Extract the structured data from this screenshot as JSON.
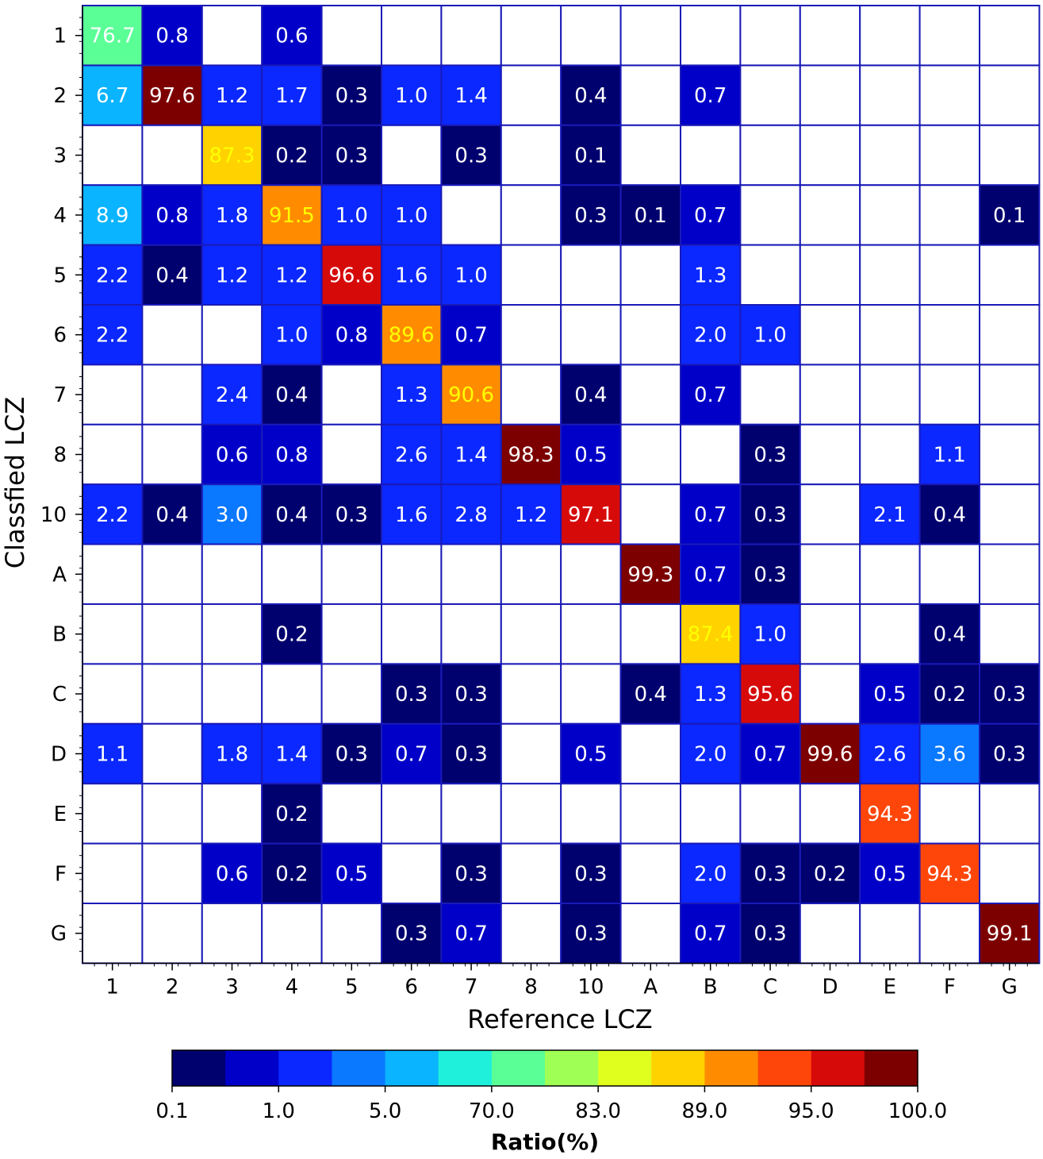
{
  "chart_data": {
    "type": "heatmap",
    "xlabel": "Reference LCZ",
    "ylabel": "Classfied LCZ",
    "x_categories": [
      "1",
      "2",
      "3",
      "4",
      "5",
      "6",
      "7",
      "8",
      "10",
      "A",
      "B",
      "C",
      "D",
      "E",
      "F",
      "G"
    ],
    "y_categories": [
      "1",
      "2",
      "3",
      "4",
      "5",
      "6",
      "7",
      "8",
      "10",
      "A",
      "B",
      "C",
      "D",
      "E",
      "F",
      "G"
    ],
    "values": [
      [
        "76.7",
        "0.8",
        "",
        "0.6",
        "",
        "",
        "",
        "",
        "",
        "",
        "",
        "",
        "",
        "",
        "",
        ""
      ],
      [
        "6.7",
        "97.6",
        "1.2",
        "1.7",
        "0.3",
        "1.0",
        "1.4",
        "",
        "0.4",
        "",
        "0.7",
        "",
        "",
        "",
        "",
        ""
      ],
      [
        "",
        "",
        "87.3",
        "0.2",
        "0.3",
        "",
        "0.3",
        "",
        "0.1",
        "",
        "",
        "",
        "",
        "",
        "",
        ""
      ],
      [
        "8.9",
        "0.8",
        "1.8",
        "91.5",
        "1.0",
        "1.0",
        "",
        "",
        "0.3",
        "0.1",
        "0.7",
        "",
        "",
        "",
        "",
        "0.1"
      ],
      [
        "2.2",
        "0.4",
        "1.2",
        "1.2",
        "96.6",
        "1.6",
        "1.0",
        "",
        "",
        "",
        "1.3",
        "",
        "",
        "",
        "",
        ""
      ],
      [
        "2.2",
        "",
        "",
        "1.0",
        "0.8",
        "89.6",
        "0.7",
        "",
        "",
        "",
        "2.0",
        "1.0",
        "",
        "",
        "",
        ""
      ],
      [
        "",
        "",
        "2.4",
        "0.4",
        "",
        "1.3",
        "90.6",
        "",
        "0.4",
        "",
        "0.7",
        "",
        "",
        "",
        "",
        ""
      ],
      [
        "",
        "",
        "0.6",
        "0.8",
        "",
        "2.6",
        "1.4",
        "98.3",
        "0.5",
        "",
        "",
        "0.3",
        "",
        "",
        "1.1",
        ""
      ],
      [
        "2.2",
        "0.4",
        "3.0",
        "0.4",
        "0.3",
        "1.6",
        "2.8",
        "1.2",
        "97.1",
        "",
        "0.7",
        "0.3",
        "",
        "2.1",
        "0.4",
        ""
      ],
      [
        "",
        "",
        "",
        "",
        "",
        "",
        "",
        "",
        "",
        "99.3",
        "0.7",
        "0.3",
        "",
        "",
        "",
        ""
      ],
      [
        "",
        "",
        "",
        "0.2",
        "",
        "",
        "",
        "",
        "",
        "",
        "87.4",
        "1.0",
        "",
        "",
        "0.4",
        ""
      ],
      [
        "",
        "",
        "",
        "",
        "",
        "0.3",
        "0.3",
        "",
        "",
        "0.4",
        "1.3",
        "95.6",
        "",
        "0.5",
        "0.2",
        "0.3"
      ],
      [
        "1.1",
        "",
        "1.8",
        "1.4",
        "0.3",
        "0.7",
        "0.3",
        "",
        "0.5",
        "",
        "2.0",
        "0.7",
        "99.6",
        "2.6",
        "3.6",
        "0.3"
      ],
      [
        "",
        "",
        "",
        "0.2",
        "",
        "",
        "",
        "",
        "",
        "",
        "",
        "",
        "",
        "94.3",
        "",
        ""
      ],
      [
        "",
        "",
        "0.6",
        "0.2",
        "0.5",
        "",
        "0.3",
        "",
        "0.3",
        "",
        "2.0",
        "0.3",
        "0.2",
        "0.5",
        "94.3",
        ""
      ],
      [
        "",
        "",
        "",
        "",
        "",
        "0.3",
        "0.7",
        "",
        "0.3",
        "",
        "0.7",
        "0.3",
        "",
        "",
        "",
        "99.1"
      ]
    ],
    "colorbar": {
      "label": "Ratio(%)",
      "ticks": [
        "0.1",
        "1.0",
        "5.0",
        "70.0",
        "83.0",
        "89.0",
        "95.0",
        "100.0"
      ],
      "bounds": [
        0.1,
        0.5,
        1.0,
        3.0,
        5.0,
        40.0,
        70.0,
        78.0,
        83.0,
        86.0,
        89.0,
        92.0,
        95.0,
        97.5,
        100.0
      ],
      "colors": [
        "#00006e",
        "#0000c8",
        "#0a28ff",
        "#0a78ff",
        "#0ab4ff",
        "#1ef0dc",
        "#5aff96",
        "#a0ff55",
        "#e1ff1e",
        "#ffd200",
        "#ff8c00",
        "#ff460a",
        "#d70a0a",
        "#7d0000"
      ]
    },
    "grid": true,
    "grid_color": "#1a1ab8"
  }
}
